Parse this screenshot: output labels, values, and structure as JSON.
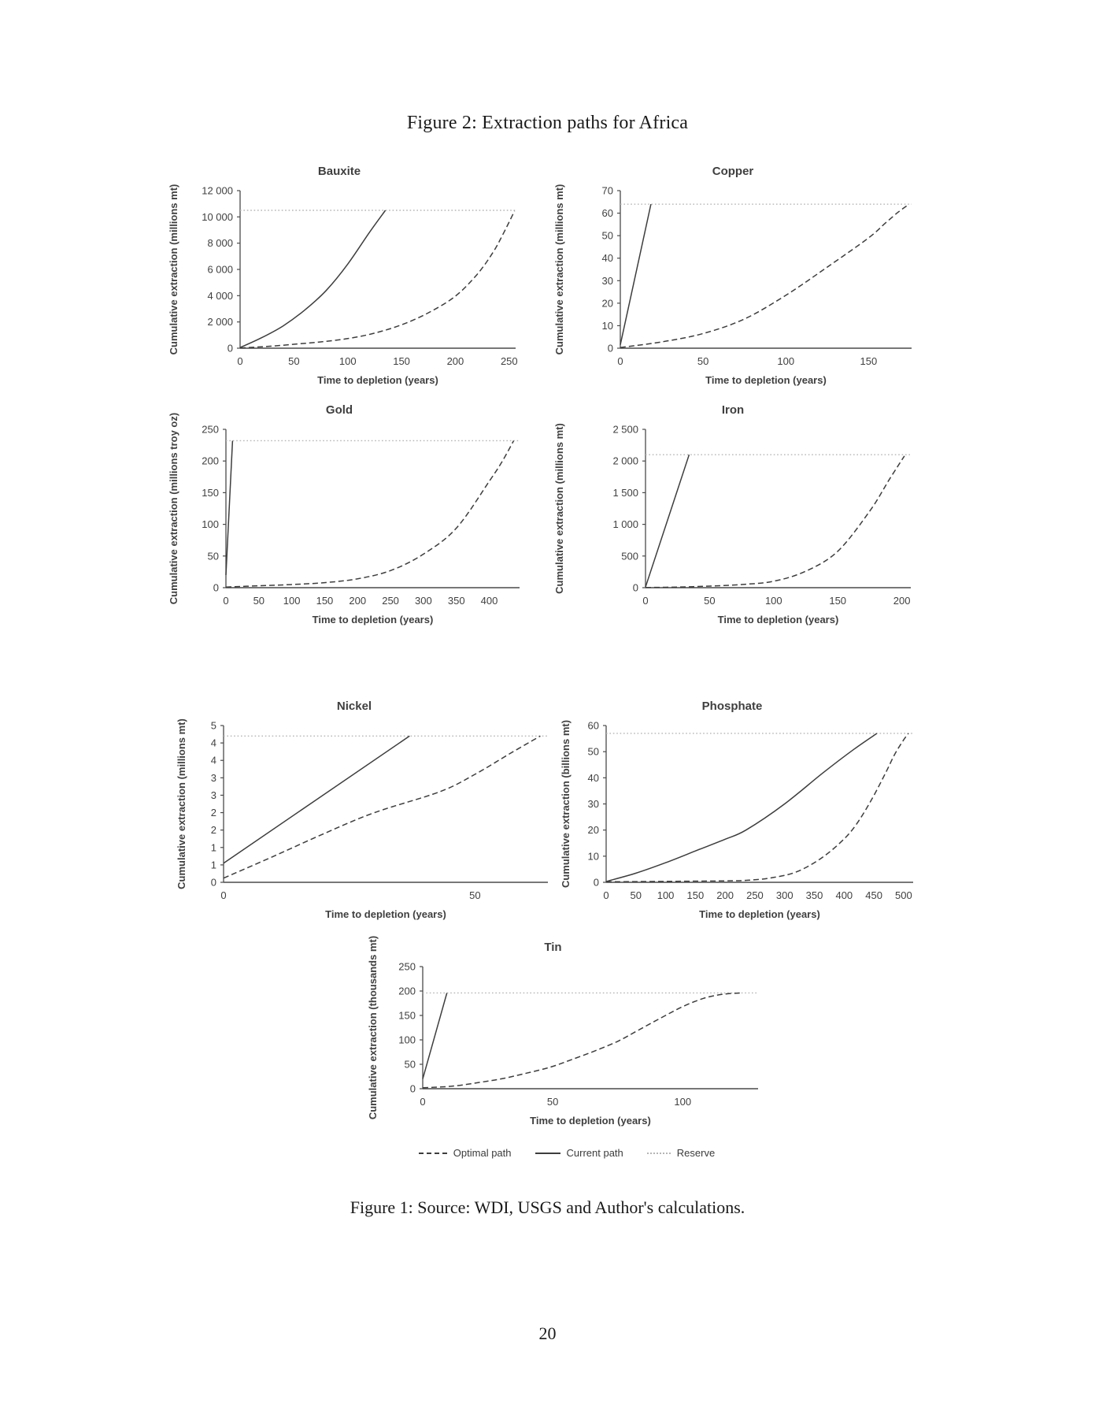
{
  "page": {
    "title": "Figure 2: Extraction paths for Africa",
    "caption": "Figure 1: Source: WDI, USGS and Author's calculations.",
    "page_number": "20"
  },
  "legend": {
    "position": "bottom-center",
    "items": [
      {
        "label": "Optimal path",
        "style": "dashed",
        "color": "#3d3d3d"
      },
      {
        "label": "Current path",
        "style": "solid",
        "color": "#3d3d3d"
      },
      {
        "label": "Reserve",
        "style": "dotted",
        "color": "#b5b5b5"
      }
    ]
  },
  "chart_data": [
    {
      "id": "bauxite",
      "type": "line",
      "title": "Bauxite",
      "xlabel": "Time to depletion (years)",
      "ylabel": "Cumulative extraction (millions mt)",
      "xlim": [
        0,
        256
      ],
      "ylim": [
        0,
        12000
      ],
      "grid": false,
      "x_ticks": [
        0,
        50,
        100,
        150,
        200,
        250
      ],
      "y_tick_values": [
        0,
        2000,
        4000,
        6000,
        8000,
        10000,
        12000
      ],
      "y_tick_labels": [
        "0",
        "2 000",
        "4 000",
        "6 000",
        "8 000",
        "10 000",
        "12 000"
      ],
      "reserve": 10500,
      "series": [
        {
          "name": "Current path",
          "style": "solid",
          "points": [
            [
              0,
              50
            ],
            [
              20,
              800
            ],
            [
              40,
              1700
            ],
            [
              60,
              2900
            ],
            [
              80,
              4400
            ],
            [
              100,
              6400
            ],
            [
              120,
              8800
            ],
            [
              135,
              10500
            ]
          ]
        },
        {
          "name": "Optimal path",
          "style": "dashed",
          "points": [
            [
              0,
              20
            ],
            [
              25,
              130
            ],
            [
              50,
              300
            ],
            [
              75,
              480
            ],
            [
              100,
              730
            ],
            [
              125,
              1150
            ],
            [
              150,
              1780
            ],
            [
              175,
              2700
            ],
            [
              200,
              3960
            ],
            [
              220,
              5600
            ],
            [
              235,
              7300
            ],
            [
              245,
              8800
            ],
            [
              255,
              10450
            ]
          ]
        }
      ]
    },
    {
      "id": "copper",
      "type": "line",
      "title": "Copper",
      "xlabel": "Time to depletion (years)",
      "ylabel": "Cumulative extraction (millions mt)",
      "xlim": [
        0,
        176
      ],
      "ylim": [
        0,
        70
      ],
      "grid": false,
      "x_ticks": [
        0,
        50,
        100,
        150
      ],
      "y_tick_values": [
        0,
        10,
        20,
        30,
        40,
        50,
        60,
        70
      ],
      "y_tick_labels": [
        "0",
        "10",
        "20",
        "30",
        "40",
        "50",
        "60",
        "70"
      ],
      "reserve": 64,
      "series": [
        {
          "name": "Current path",
          "style": "solid",
          "points": [
            [
              0,
              1.5
            ],
            [
              18.5,
              64
            ]
          ]
        },
        {
          "name": "Optimal path",
          "style": "dashed",
          "points": [
            [
              0,
              0.3
            ],
            [
              25,
              2.8
            ],
            [
              50,
              6.5
            ],
            [
              75,
              13
            ],
            [
              100,
              23.5
            ],
            [
              125,
              36
            ],
            [
              150,
              49
            ],
            [
              160,
              55.5
            ],
            [
              168,
              60.5
            ],
            [
              174,
              63.7
            ]
          ]
        }
      ]
    },
    {
      "id": "gold",
      "type": "line",
      "title": "Gold",
      "xlabel": "Time to depletion (years)",
      "ylabel": "Cumulative extraction (millions troy oz)",
      "xlim": [
        0,
        446
      ],
      "ylim": [
        0,
        250
      ],
      "grid": false,
      "x_ticks": [
        0,
        50,
        100,
        150,
        200,
        250,
        300,
        350,
        400
      ],
      "y_tick_values": [
        0,
        50,
        100,
        150,
        200,
        250
      ],
      "y_tick_labels": [
        "0",
        "50",
        "100",
        "150",
        "200",
        "250"
      ],
      "reserve": 232,
      "series": [
        {
          "name": "Current path",
          "style": "solid",
          "points": [
            [
              0,
              20
            ],
            [
              10,
              232
            ]
          ]
        },
        {
          "name": "Optimal path",
          "style": "dashed",
          "points": [
            [
              0,
              1
            ],
            [
              50,
              3
            ],
            [
              100,
              5
            ],
            [
              150,
              8
            ],
            [
              200,
              14
            ],
            [
              250,
              27
            ],
            [
              300,
              53
            ],
            [
              350,
              94
            ],
            [
              400,
              168
            ],
            [
              420,
              200
            ],
            [
              437,
              232
            ]
          ]
        }
      ]
    },
    {
      "id": "iron",
      "type": "line",
      "title": "Iron",
      "xlabel": "Time to depletion (years)",
      "ylabel": "Cumulative extraction (millions mt)",
      "xlim": [
        0,
        207
      ],
      "ylim": [
        0,
        2500
      ],
      "grid": false,
      "x_ticks": [
        0,
        50,
        100,
        150,
        200
      ],
      "y_tick_values": [
        0,
        500,
        1000,
        1500,
        2000,
        2500
      ],
      "y_tick_labels": [
        "0",
        "500",
        "1 000",
        "1 500",
        "2 000",
        "2 500"
      ],
      "reserve": 2100,
      "series": [
        {
          "name": "Current path",
          "style": "solid",
          "points": [
            [
              0,
              10
            ],
            [
              34,
              2100
            ]
          ]
        },
        {
          "name": "Optimal path",
          "style": "dashed",
          "points": [
            [
              0,
              3
            ],
            [
              25,
              10
            ],
            [
              50,
              25
            ],
            [
              75,
              50
            ],
            [
              100,
              102
            ],
            [
              125,
              260
            ],
            [
              150,
              575
            ],
            [
              175,
              1210
            ],
            [
              190,
              1700
            ],
            [
              202,
              2080
            ]
          ]
        }
      ]
    },
    {
      "id": "nickel",
      "type": "line",
      "title": "Nickel",
      "xlabel": "Time to depletion (years)",
      "ylabel": "Cumulative extraction (millions mt)",
      "xlim": [
        0,
        64.5
      ],
      "ylim": [
        0,
        4.5
      ],
      "grid": false,
      "x_ticks": [
        0,
        50
      ],
      "y_tick_values": [
        0,
        0.5,
        1,
        1.5,
        2,
        2.5,
        3,
        3.5,
        4,
        4.5
      ],
      "y_tick_labels": [
        "0",
        "1",
        "1",
        "2",
        "2",
        "3",
        "3",
        "4",
        "4",
        "5"
      ],
      "reserve": 4.2,
      "series": [
        {
          "name": "Current path",
          "style": "solid",
          "points": [
            [
              0,
              0.55
            ],
            [
              37,
              4.2
            ]
          ]
        },
        {
          "name": "Optimal path",
          "style": "dashed",
          "points": [
            [
              0,
              0.12
            ],
            [
              10,
              0.75
            ],
            [
              20,
              1.4
            ],
            [
              30,
              2.0
            ],
            [
              43,
              2.6
            ],
            [
              50,
              3.1
            ],
            [
              57,
              3.7
            ],
            [
              63,
              4.2
            ]
          ]
        }
      ]
    },
    {
      "id": "phosphate",
      "type": "line",
      "title": "Phosphate",
      "xlabel": "Time to depletion (years)",
      "ylabel": "Cumulative extraction (billions mt)",
      "xlim": [
        0,
        516
      ],
      "ylim": [
        0,
        60
      ],
      "grid": false,
      "x_ticks": [
        0,
        50,
        100,
        150,
        200,
        250,
        300,
        350,
        400,
        450,
        500
      ],
      "y_tick_values": [
        0,
        10,
        20,
        30,
        40,
        50,
        60
      ],
      "y_tick_labels": [
        "0",
        "10",
        "20",
        "30",
        "40",
        "50",
        "60"
      ],
      "reserve": 57,
      "series": [
        {
          "name": "Current path",
          "style": "solid",
          "points": [
            [
              0,
              0.3
            ],
            [
              50,
              3.5
            ],
            [
              100,
              7.5
            ],
            [
              150,
              12
            ],
            [
              200,
              16.5
            ],
            [
              235,
              20
            ],
            [
              300,
              30
            ],
            [
              365,
              42
            ],
            [
              417,
              51
            ],
            [
              455,
              57
            ]
          ]
        },
        {
          "name": "Optimal path",
          "style": "dashed",
          "points": [
            [
              0,
              0.2
            ],
            [
              100,
              0.35
            ],
            [
              200,
              0.55
            ],
            [
              240,
              0.8
            ],
            [
              280,
              1.8
            ],
            [
              320,
              4
            ],
            [
              360,
              9
            ],
            [
              395,
              15.5
            ],
            [
              420,
              22
            ],
            [
              447,
              32
            ],
            [
              470,
              42
            ],
            [
              485,
              49
            ],
            [
              500,
              54.5
            ],
            [
              508,
              57
            ]
          ]
        }
      ]
    },
    {
      "id": "tin",
      "type": "line",
      "title": "Tin",
      "xlabel": "Time to depletion (years)",
      "ylabel": "Cumulative extraction (thousands mt)",
      "xlim": [
        0,
        129
      ],
      "ylim": [
        0,
        250
      ],
      "grid": false,
      "x_ticks": [
        0,
        50,
        100
      ],
      "y_tick_values": [
        0,
        50,
        100,
        150,
        200,
        250
      ],
      "y_tick_labels": [
        "0",
        "50",
        "100",
        "150",
        "200",
        "250"
      ],
      "reserve": 196,
      "series": [
        {
          "name": "Current path",
          "style": "solid",
          "points": [
            [
              0,
              20
            ],
            [
              9.3,
              196
            ]
          ]
        },
        {
          "name": "Optimal path",
          "style": "dashed",
          "points": [
            [
              0,
              2
            ],
            [
              11,
              5
            ],
            [
              22,
              13
            ],
            [
              31,
              21
            ],
            [
              40,
              32
            ],
            [
              49,
              44
            ],
            [
              57,
              59
            ],
            [
              66,
              77
            ],
            [
              75,
              97
            ],
            [
              83,
              120
            ],
            [
              92,
              146
            ],
            [
              100,
              168
            ],
            [
              108,
              185
            ],
            [
              115,
              193
            ],
            [
              122,
              196
            ]
          ]
        }
      ]
    }
  ]
}
